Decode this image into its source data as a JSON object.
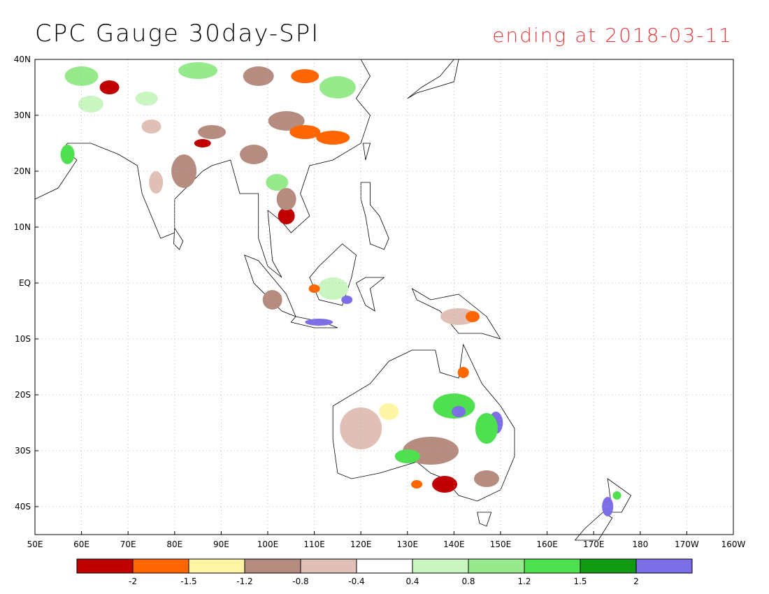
{
  "title": "CPC Gauge 30day-SPI",
  "subtitle": "ending at 2018-03-11",
  "map": {
    "lon_labels": [
      "50E",
      "60E",
      "70E",
      "80E",
      "90E",
      "100E",
      "110E",
      "120E",
      "130E",
      "140E",
      "150E",
      "160E",
      "170E",
      "180",
      "170W",
      "160W"
    ],
    "lat_labels": [
      "40N",
      "30N",
      "20N",
      "10N",
      "EQ",
      "10S",
      "20S",
      "30S",
      "40S"
    ],
    "lon_range": [
      50,
      200
    ],
    "lat_range": [
      -45,
      40
    ],
    "grid": true
  },
  "colorbar": {
    "colors": [
      "#c00000",
      "#ff6600",
      "#fff5a5",
      "#b58c7f",
      "#e0c0b6",
      "#ffffff",
      "#c8f5c0",
      "#96ea8c",
      "#4ee04e",
      "#129a12",
      "#7b6ee6"
    ],
    "labels": [
      "-2",
      "-1.5",
      "-1.2",
      "-0.8",
      "-0.4",
      "0.4",
      "0.8",
      "1.2",
      "1.5",
      "2"
    ]
  }
}
